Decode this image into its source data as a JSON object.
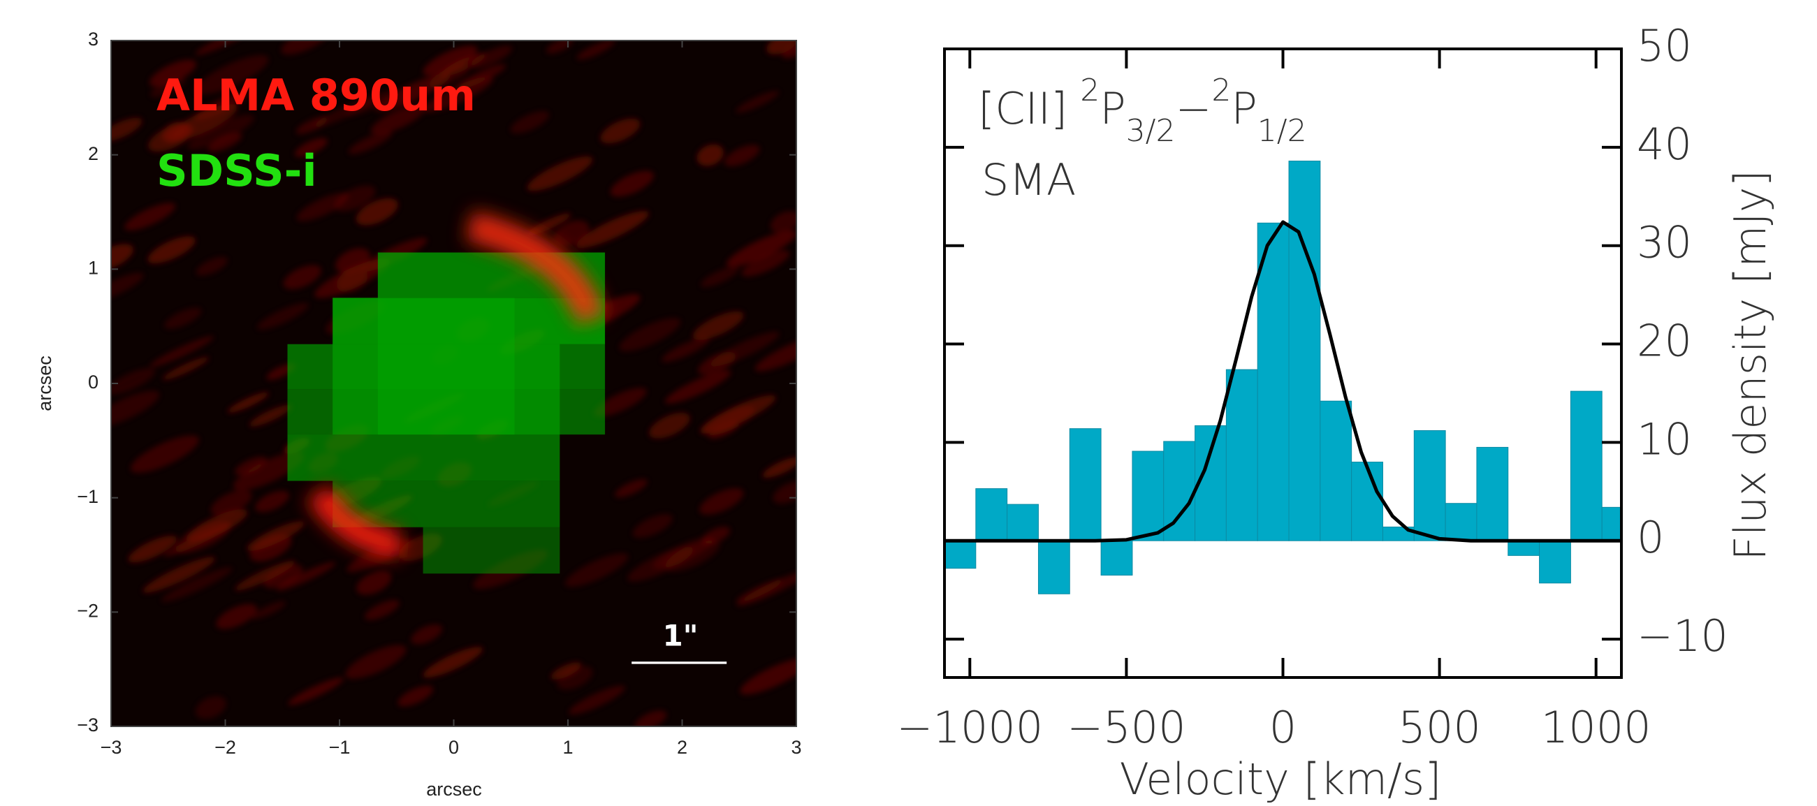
{
  "chart_data": [
    {
      "type": "image",
      "xlabel": "arcsec",
      "ylabel": "arcsec",
      "xlim": [
        -3,
        3
      ],
      "ylim": [
        -3,
        3
      ],
      "xticks": [
        {
          "value": -3,
          "label": "−3"
        },
        {
          "value": -2,
          "label": "−2"
        },
        {
          "value": -1,
          "label": "−1"
        },
        0,
        1,
        2,
        3
      ],
      "yticks": [
        {
          "value": -3,
          "label": "−3"
        },
        {
          "value": -2,
          "label": "−2"
        },
        {
          "value": -1,
          "label": "−1"
        },
        0,
        1,
        2,
        3
      ],
      "legend": [
        {
          "name": "ALMA 890um",
          "color": "#ff1a10"
        },
        {
          "name": "SDSS-i",
          "color": "#22e010"
        }
      ],
      "scale_bar": "1\""
    },
    {
      "type": "histogram",
      "xlabel": "Velocity [km/s]",
      "ylabel": "Flux density [mJy]",
      "annotation": [
        "[CII]",
        "2",
        "P",
        "3/2",
        "−",
        "2",
        "P",
        "1/2"
      ],
      "instrument": "SMA",
      "xlim": [
        -1081,
        1081
      ],
      "ylim": [
        -13.9,
        50
      ],
      "xticks": [
        {
          "value": -1000,
          "label": "−1000"
        },
        {
          "value": -500,
          "label": "−500"
        },
        0,
        500,
        1000
      ],
      "yticks": [
        {
          "value": -10,
          "label": "−10"
        },
        0,
        10,
        20,
        30,
        40,
        50
      ],
      "bins": [
        -1081,
        -981,
        -881,
        -781,
        -681,
        -581,
        -481,
        -381,
        -281,
        -181,
        -81,
        19,
        119,
        219,
        319,
        419,
        519,
        619,
        719,
        819,
        919,
        1019,
        1081
      ],
      "values": [
        -2.8,
        5.3,
        3.7,
        -5.4,
        11.4,
        -3.5,
        9.1,
        10.1,
        11.7,
        17.4,
        32.3,
        38.6,
        14.2,
        8.0,
        1.4,
        11.2,
        3.8,
        9.5,
        -1.5,
        -4.3,
        15.2,
        3.4
      ],
      "color": "#00a9c6",
      "fit": {
        "color": "#000000",
        "x": [
          -1081,
          -600,
          -500,
          -400,
          -350,
          -300,
          -250,
          -200,
          -150,
          -100,
          -50,
          0,
          50,
          100,
          150,
          200,
          250,
          300,
          350,
          400,
          500,
          600,
          1081
        ],
        "values": [
          0,
          0,
          0.1,
          0.8,
          1.8,
          3.8,
          7.2,
          12.2,
          18.4,
          24.8,
          30.0,
          32.4,
          31.4,
          27.1,
          21.0,
          14.6,
          9.0,
          5.0,
          2.5,
          1.1,
          0.2,
          0,
          0
        ]
      }
    }
  ]
}
